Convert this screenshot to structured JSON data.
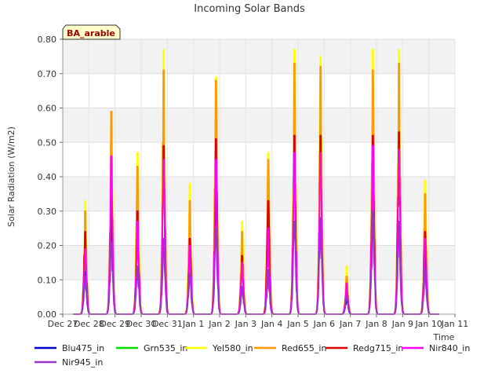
{
  "chart_data": {
    "type": "line",
    "title": "Incoming Solar Bands",
    "xlabel": "Time",
    "ylabel": "Solar Radiation (W/m2)",
    "badge": "BA_arable",
    "ylim": [
      0,
      0.8
    ],
    "yticks": [
      "0.00",
      "0.10",
      "0.20",
      "0.30",
      "0.40",
      "0.50",
      "0.60",
      "0.70",
      "0.80"
    ],
    "xticks": [
      "Dec 27",
      "Dec 28",
      "Dec 29",
      "Dec 30",
      "Dec 31",
      "Jan 1",
      "Jan 2",
      "Jan 3",
      "Jan 4",
      "Jan 5",
      "Jan 6",
      "Jan 7",
      "Jan 8",
      "Jan 9",
      "Jan 10",
      "Jan 11"
    ],
    "grid": true,
    "legend": "bottom",
    "day_peaks": [
      {
        "day": "Dec 28",
        "Blu475_in": 0.13,
        "Grn535_in": 0.21,
        "Yel580_in": 0.33,
        "Red655_in": 0.3,
        "Redg715_in": 0.24,
        "Nir840_in": 0.19,
        "Nir945_in": 0.11
      },
      {
        "day": "Dec 29",
        "Blu475_in": 0.3,
        "Grn535_in": 0.4,
        "Yel580_in": 0.53,
        "Red655_in": 0.59,
        "Redg715_in": 0.34,
        "Nir840_in": 0.46,
        "Nir945_in": 0.21
      },
      {
        "day": "Dec 30",
        "Blu475_in": 0.25,
        "Grn535_in": 0.35,
        "Yel580_in": 0.47,
        "Red655_in": 0.43,
        "Redg715_in": 0.3,
        "Nir840_in": 0.27,
        "Nir945_in": 0.14
      },
      {
        "day": "Dec 31",
        "Blu475_in": 0.45,
        "Grn535_in": 0.55,
        "Yel580_in": 0.77,
        "Red655_in": 0.71,
        "Redg715_in": 0.49,
        "Nir840_in": 0.45,
        "Nir945_in": 0.22
      },
      {
        "day": "Jan 1",
        "Blu475_in": 0.18,
        "Grn535_in": 0.25,
        "Yel580_in": 0.38,
        "Red655_in": 0.33,
        "Redg715_in": 0.22,
        "Nir840_in": 0.2,
        "Nir945_in": 0.12
      },
      {
        "day": "Jan 2",
        "Blu475_in": 0.42,
        "Grn535_in": 0.55,
        "Yel580_in": 0.69,
        "Red655_in": 0.68,
        "Redg715_in": 0.51,
        "Nir840_in": 0.45,
        "Nir945_in": 0.25
      },
      {
        "day": "Jan 3",
        "Blu475_in": 0.14,
        "Grn535_in": 0.2,
        "Yel580_in": 0.27,
        "Red655_in": 0.24,
        "Redg715_in": 0.17,
        "Nir840_in": 0.15,
        "Nir945_in": 0.08
      },
      {
        "day": "Jan 4",
        "Blu475_in": 0.28,
        "Grn535_in": 0.38,
        "Yel580_in": 0.47,
        "Red655_in": 0.45,
        "Redg715_in": 0.33,
        "Nir840_in": 0.25,
        "Nir945_in": 0.13
      },
      {
        "day": "Jan 5",
        "Blu475_in": 0.55,
        "Grn535_in": 0.62,
        "Yel580_in": 0.77,
        "Red655_in": 0.73,
        "Redg715_in": 0.52,
        "Nir840_in": 0.47,
        "Nir945_in": 0.27
      },
      {
        "day": "Jan 6",
        "Blu475_in": 0.55,
        "Grn535_in": 0.61,
        "Yel580_in": 0.75,
        "Red655_in": 0.72,
        "Redg715_in": 0.52,
        "Nir840_in": 0.47,
        "Nir945_in": 0.28
      },
      {
        "day": "Jan 7",
        "Blu475_in": 0.05,
        "Grn535_in": 0.08,
        "Yel580_in": 0.14,
        "Red655_in": 0.11,
        "Redg715_in": 0.08,
        "Nir840_in": 0.09,
        "Nir945_in": 0.05
      },
      {
        "day": "Jan 8",
        "Blu475_in": 0.55,
        "Grn535_in": 0.63,
        "Yel580_in": 0.77,
        "Red655_in": 0.71,
        "Redg715_in": 0.52,
        "Nir840_in": 0.49,
        "Nir945_in": 0.3
      },
      {
        "day": "Jan 9",
        "Blu475_in": 0.55,
        "Grn535_in": 0.63,
        "Yel580_in": 0.77,
        "Red655_in": 0.73,
        "Redg715_in": 0.53,
        "Nir840_in": 0.48,
        "Nir945_in": 0.27
      },
      {
        "day": "Jan 10",
        "Blu475_in": 0.22,
        "Grn535_in": 0.3,
        "Yel580_in": 0.39,
        "Red655_in": 0.35,
        "Redg715_in": 0.24,
        "Nir840_in": 0.22,
        "Nir945_in": 0.13
      }
    ],
    "series": [
      {
        "name": "Blu475_in",
        "color": "#0000cc"
      },
      {
        "name": "Grn535_in",
        "color": "#00dd00"
      },
      {
        "name": "Yel580_in",
        "color": "#ffff00"
      },
      {
        "name": "Red655_in",
        "color": "#ff9900"
      },
      {
        "name": "Redg715_in",
        "color": "#dd0000"
      },
      {
        "name": "Nir840_in",
        "color": "#ff00ff"
      },
      {
        "name": "Nir945_in",
        "color": "#9933cc"
      }
    ]
  }
}
